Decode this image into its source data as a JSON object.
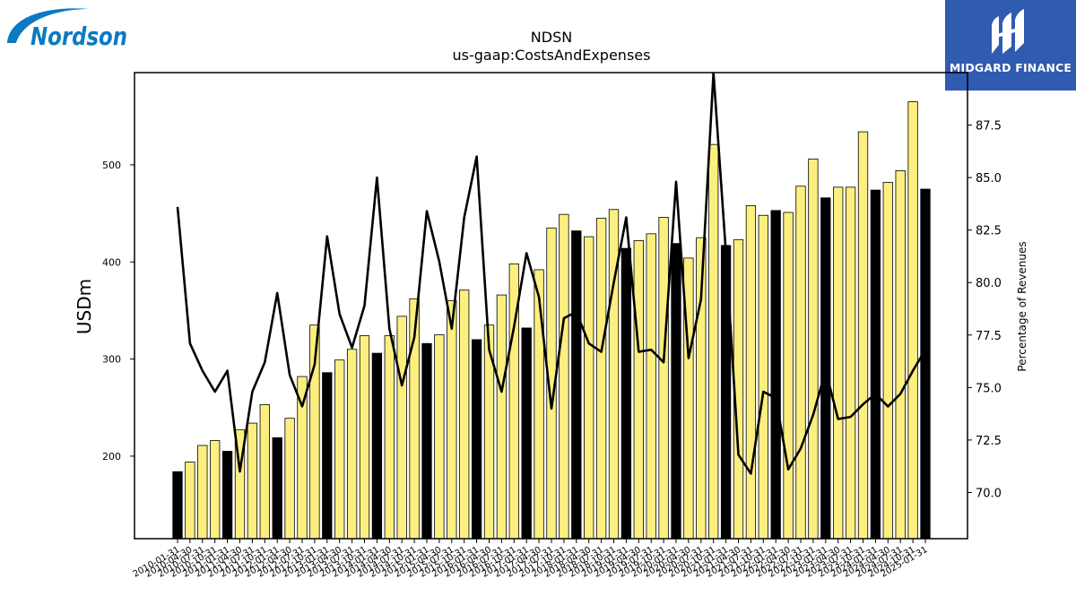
{
  "brand": {
    "company_logo_text": "Nordson",
    "publisher_name": "MIDGARD FINANCE",
    "publisher_color": "#2f5bb0",
    "company_color": "#0b7ac2"
  },
  "chart_data": {
    "type": "bar",
    "title": "NDSN",
    "subtitle": "us-gaap:CostsAndExpenses",
    "ylabel": "USDm",
    "y2label": "Percentage of Revenues",
    "ylim": [
      115,
      595
    ],
    "y2lim": [
      67.8,
      90.0
    ],
    "yticks": [
      200,
      300,
      400,
      500
    ],
    "y2ticks": [
      "70.0",
      "72.5",
      "75.0",
      "77.5",
      "80.0",
      "82.5",
      "85.0",
      "87.5"
    ],
    "grid": false,
    "colors": {
      "quarter_bar": "#fdef7f",
      "annual_bar": "#000000",
      "line": "#000000"
    },
    "categories": [
      "2010-01-31",
      "2010-04-30",
      "2010-07-31",
      "2010-10-31",
      "2011-01-31",
      "2011-04-30",
      "2011-07-31",
      "2011-10-31",
      "2012-01-31",
      "2012-04-30",
      "2012-07-31",
      "2012-10-31",
      "2013-01-31",
      "2013-04-30",
      "2013-07-31",
      "2013-10-31",
      "2014-01-31",
      "2014-04-30",
      "2014-07-31",
      "2014-10-31",
      "2015-01-31",
      "2015-04-30",
      "2015-07-31",
      "2015-10-31",
      "2016-01-31",
      "2016-04-30",
      "2016-07-31",
      "2016-10-31",
      "2017-01-31",
      "2017-04-30",
      "2017-07-31",
      "2017-10-31",
      "2018-01-31",
      "2018-04-30",
      "2018-07-31",
      "2018-10-31",
      "2019-01-31",
      "2019-04-30",
      "2019-07-31",
      "2019-10-31",
      "2020-01-31",
      "2020-04-30",
      "2020-07-31",
      "2020-10-31",
      "2021-01-31",
      "2021-04-30",
      "2021-07-31",
      "2021-10-31",
      "2022-01-31",
      "2022-04-30",
      "2022-07-31",
      "2022-10-31",
      "2023-01-31",
      "2023-04-30",
      "2023-07-31",
      "2023-10-31",
      "2024-01-31",
      "2024-04-30",
      "2024-07-31",
      "2024-10-31",
      "2025-01-31"
    ],
    "annual_flags": [
      1,
      0,
      0,
      0,
      1,
      0,
      0,
      0,
      1,
      0,
      0,
      0,
      1,
      0,
      0,
      0,
      1,
      0,
      0,
      0,
      1,
      0,
      0,
      0,
      1,
      0,
      0,
      0,
      1,
      0,
      0,
      0,
      1,
      0,
      0,
      0,
      1,
      0,
      0,
      0,
      1,
      0,
      0,
      0,
      1,
      0,
      0,
      0,
      1,
      0,
      0,
      0,
      1,
      0,
      0,
      0,
      1,
      0,
      0,
      0,
      1
    ],
    "series": [
      {
        "name": "Costs and expenses (USDm)",
        "values": [
          184,
          194,
          211,
          216,
          205,
          227,
          234,
          253,
          219,
          239,
          282,
          335,
          286,
          299,
          310,
          324,
          306,
          324,
          344,
          362,
          316,
          325,
          360,
          371,
          320,
          335,
          366,
          398,
          332,
          392,
          435,
          449,
          432,
          426,
          445,
          454,
          414,
          422,
          429,
          446,
          419,
          404,
          425,
          521,
          417,
          423,
          458,
          448,
          453,
          451,
          478,
          506,
          466,
          477,
          477,
          534,
          474,
          482,
          494,
          565,
          475
        ]
      },
      {
        "name": "Percentage of Revenues",
        "axis": "right",
        "values": [
          83.6,
          77.1,
          75.8,
          74.8,
          75.8,
          71.0,
          74.8,
          76.2,
          79.5,
          75.6,
          74.1,
          76.1,
          82.2,
          78.5,
          76.9,
          78.9,
          85.0,
          77.8,
          75.1,
          77.4,
          83.4,
          81.0,
          77.8,
          83.1,
          86.0,
          76.8,
          74.8,
          77.9,
          81.4,
          79.3,
          74.0,
          78.3,
          78.6,
          77.1,
          76.7,
          80.0,
          83.1,
          76.7,
          76.8,
          76.2,
          84.8,
          76.4,
          79.2,
          90.0,
          81.4,
          71.8,
          70.9,
          74.8,
          74.5,
          71.1,
          72.1,
          73.7,
          75.8,
          73.5,
          73.6,
          74.2,
          74.7,
          74.1,
          74.7,
          75.8,
          76.8
        ]
      }
    ]
  }
}
